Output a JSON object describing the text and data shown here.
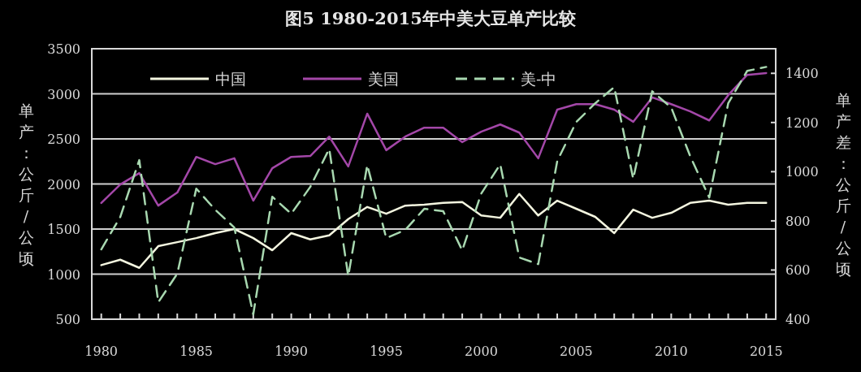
{
  "chart_data": {
    "type": "line",
    "title": "图5    1980-2015年中美大豆单产比较",
    "ylabel": "单产：公斤/公顷",
    "y2label": "单产差：公斤/公顷",
    "x": [
      1980,
      1981,
      1982,
      1983,
      1984,
      1985,
      1986,
      1987,
      1988,
      1989,
      1990,
      1991,
      1992,
      1993,
      1994,
      1995,
      1996,
      1997,
      1998,
      1999,
      2000,
      2001,
      2002,
      2003,
      2004,
      2005,
      2006,
      2007,
      2008,
      2009,
      2010,
      2011,
      2012,
      2013,
      2014,
      2015
    ],
    "series": [
      {
        "name": "中国",
        "color": "#f4f6e0",
        "line_style": "solid",
        "values": [
          1100,
          1160,
          1070,
          1310,
          1355,
          1400,
          1455,
          1500,
          1400,
          1265,
          1455,
          1385,
          1430,
          1610,
          1745,
          1670,
          1760,
          1770,
          1790,
          1800,
          1650,
          1625,
          1890,
          1650,
          1815,
          1725,
          1635,
          1455,
          1715,
          1625,
          1680,
          1790,
          1815,
          1770,
          1790,
          1790
        ]
      },
      {
        "name": "美国",
        "color": "#a347a8",
        "line_style": "solid",
        "values": [
          1790,
          1995,
          2120,
          1760,
          1905,
          2300,
          2220,
          2285,
          1815,
          2175,
          2300,
          2310,
          2525,
          2195,
          2780,
          2375,
          2525,
          2625,
          2625,
          2465,
          2580,
          2660,
          2570,
          2285,
          2825,
          2885,
          2885,
          2825,
          2690,
          2960,
          2885,
          2805,
          2705,
          2985,
          3210,
          3230
        ]
      },
      {
        "name": "美-中",
        "color": "#a8d8b0",
        "line_style": "dashed",
        "axis": "y2",
        "values": [
          684,
          816,
          1047,
          469,
          585,
          931,
          845,
          773,
          420,
          898,
          829,
          938,
          1093,
          575,
          1027,
          730,
          763,
          849,
          839,
          680,
          911,
          1030,
          651,
          624,
          1043,
          1202,
          1278,
          1344,
          971,
          1327,
          1261,
          1063,
          895,
          1278,
          1410,
          1426
        ]
      }
    ],
    "xlim": [
      1979.5,
      2015.5
    ],
    "xticks": [
      1980,
      {
        "value": 1981,
        "label": null
      },
      {
        "value": 1982,
        "label": null
      },
      {
        "value": 1983,
        "label": null
      },
      {
        "value": 1984,
        "label": null
      },
      1985,
      {
        "value": 1986,
        "label": null
      },
      {
        "value": 1987,
        "label": null
      },
      {
        "value": 1988,
        "label": null
      },
      {
        "value": 1989,
        "label": null
      },
      1990,
      {
        "value": 1991,
        "label": null
      },
      {
        "value": 1992,
        "label": null
      },
      {
        "value": 1993,
        "label": null
      },
      {
        "value": 1994,
        "label": null
      },
      1995,
      {
        "value": 1996,
        "label": null
      },
      {
        "value": 1997,
        "label": null
      },
      {
        "value": 1998,
        "label": null
      },
      {
        "value": 1999,
        "label": null
      },
      2000,
      {
        "value": 2001,
        "label": null
      },
      {
        "value": 2002,
        "label": null
      },
      {
        "value": 2003,
        "label": null
      },
      {
        "value": 2004,
        "label": null
      },
      2005,
      {
        "value": 2006,
        "label": null
      },
      {
        "value": 2007,
        "label": null
      },
      {
        "value": 2008,
        "label": null
      },
      {
        "value": 2009,
        "label": null
      },
      2010,
      {
        "value": 2011,
        "label": null
      },
      {
        "value": 2012,
        "label": null
      },
      {
        "value": 2013,
        "label": null
      },
      {
        "value": 2014,
        "label": null
      },
      2015
    ],
    "ylim": [
      500,
      3500
    ],
    "yticks": [
      500,
      1000,
      1500,
      2000,
      2500,
      3000,
      3500
    ],
    "y2lim": [
      400,
      1500
    ],
    "y2ticks": [
      400,
      600,
      800,
      1000,
      1200,
      1400
    ],
    "grid": "y",
    "legend": "top"
  }
}
